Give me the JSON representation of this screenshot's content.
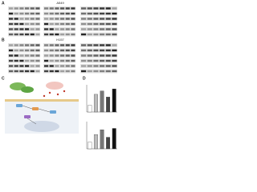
{
  "panels": {
    "a": {
      "letter": "A",
      "cell_line": "A549"
    },
    "b": {
      "letter": "B",
      "cell_line": "H157"
    },
    "c": {
      "letter": "C"
    },
    "d": {
      "letter": "D",
      "charts": [
        {
          "values": [
            1,
            2.6,
            3.1,
            2.2,
            3.4
          ],
          "ylim": [
            0,
            4
          ]
        },
        {
          "values": [
            1,
            2.1,
            2.8,
            1.7,
            3.0
          ],
          "ylim": [
            0,
            4
          ]
        }
      ]
    }
  }
}
